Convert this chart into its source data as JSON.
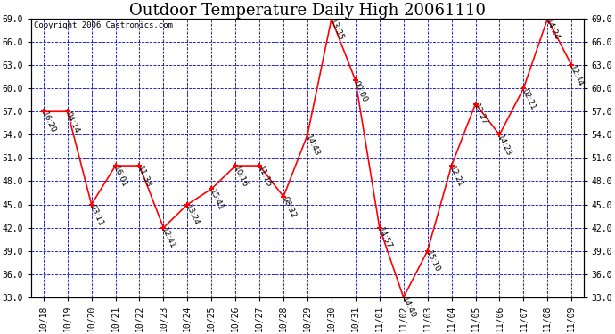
{
  "title": "Outdoor Temperature Daily High 20061110",
  "copyright": "Copyright 2006 Castronics.com",
  "outer_bg_color": "#ffffff",
  "plot_bg_color": "#ffffff",
  "line_color": "#ff0000",
  "marker_color": "#ff0000",
  "grid_color": "#0000cc",
  "text_color": "#000000",
  "x_labels": [
    "10/18",
    "10/19",
    "10/20",
    "10/21",
    "10/22",
    "10/23",
    "10/24",
    "10/25",
    "10/26",
    "10/27",
    "10/28",
    "10/29",
    "10/30",
    "10/31",
    "11/01",
    "11/02",
    "11/03",
    "11/04",
    "11/05",
    "11/06",
    "11/07",
    "11/08",
    "11/09"
  ],
  "y_values": [
    57.0,
    57.0,
    45.0,
    50.0,
    50.0,
    42.0,
    45.0,
    47.0,
    50.0,
    50.0,
    46.0,
    54.0,
    69.0,
    61.0,
    42.0,
    33.0,
    39.0,
    50.0,
    58.0,
    54.0,
    60.0,
    69.0,
    63.0
  ],
  "point_labels": [
    "16:20",
    "04:14",
    "03:11",
    "16:01",
    "11:38",
    "12:41",
    "13:24",
    "15:41",
    "10:16",
    "11:15",
    "08:32",
    "14:43",
    "13:35",
    "00:00",
    "14:57",
    "14:40",
    "15:10",
    "12:21",
    "13:27",
    "14:23",
    "02:21",
    "14:24",
    "12:44"
  ],
  "ylim_min": 33.0,
  "ylim_max": 69.0,
  "yticks": [
    33.0,
    36.0,
    39.0,
    42.0,
    45.0,
    48.0,
    51.0,
    54.0,
    57.0,
    60.0,
    63.0,
    66.0,
    69.0
  ],
  "title_fontsize": 13,
  "label_fontsize": 6.5,
  "axis_fontsize": 7,
  "copyright_fontsize": 6.5
}
